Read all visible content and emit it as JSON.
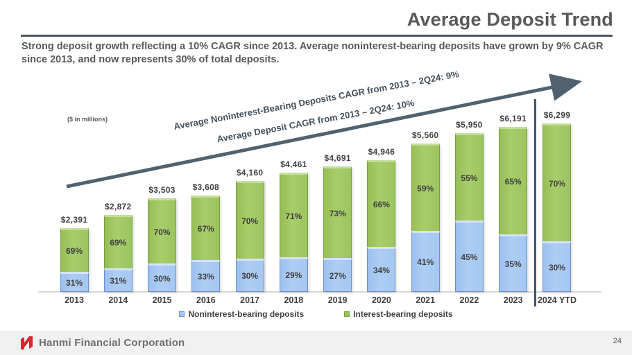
{
  "header": {
    "title": "Average Deposit Trend",
    "subtitle": "Strong deposit growth reflecting a 10% CAGR since 2013.  Average noninterest-bearing deposits have grown by 9% CAGR since 2013, and now represents 30% of total deposits."
  },
  "chart": {
    "units_label": "($ in millions)",
    "cagr_noninterest_label": "Average Noninterest-Bearing Deposits CAGR from 2013 – 2Q24: 9%",
    "cagr_total_label": "Average Deposit CAGR from 2013 – 2Q24: 10%",
    "arrow_color": "#50626f",
    "separator_color": "#44546a"
  },
  "chart_data": {
    "type": "bar",
    "stacked": true,
    "title": "Average Deposit Trend",
    "ylabel": "($ in millions)",
    "categories": [
      "2013",
      "2014",
      "2015",
      "2016",
      "2017",
      "2018",
      "2019",
      "2020",
      "2021",
      "2022",
      "2023",
      "2024 YTD"
    ],
    "totals": [
      2391,
      2872,
      3503,
      3608,
      4160,
      4461,
      4691,
      4946,
      5560,
      5950,
      6191,
      6299
    ],
    "totals_labels": [
      "$2,391",
      "$2,872",
      "$3,503",
      "$3,608",
      "$4,160",
      "$4,461",
      "$4,691",
      "$4,946",
      "$5,560",
      "$5,950",
      "$6,191",
      "$6,299"
    ],
    "series": [
      {
        "name": "Noninterest-bearing deposits",
        "color": "#a4c7f0",
        "border_color": "#7090c8",
        "pct": [
          31,
          31,
          30,
          33,
          30,
          29,
          27,
          34,
          41,
          45,
          35,
          30
        ]
      },
      {
        "name": "Interest-bearing deposits",
        "color": "#9cc45e",
        "border_color": "#79a03f",
        "pct": [
          69,
          69,
          70,
          67,
          70,
          71,
          73,
          66,
          59,
          55,
          65,
          70
        ]
      }
    ],
    "legend_position": "bottom",
    "grid": false,
    "annotations": [
      "Average Noninterest-Bearing Deposits CAGR from 2013 – 2Q24: 9%",
      "Average Deposit CAGR from 2013 – 2Q24: 10%"
    ]
  },
  "footer": {
    "company": "Hanmi Financial Corporation",
    "page_number": "24"
  }
}
